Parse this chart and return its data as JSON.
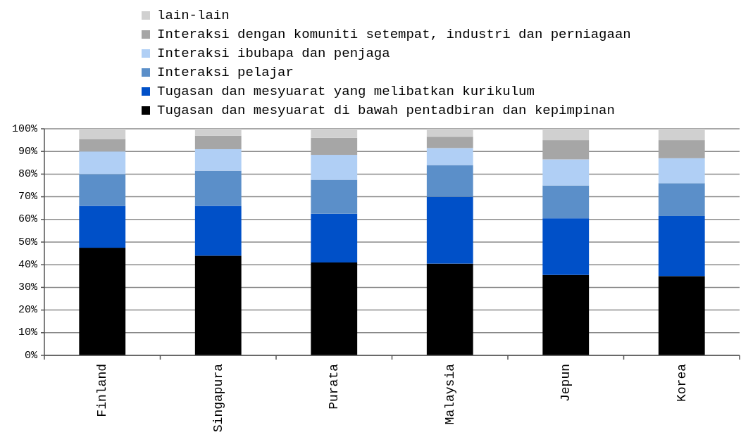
{
  "chart_data": {
    "type": "bar",
    "stacked": true,
    "legend": "top",
    "grid": "y",
    "categories": [
      "Finland",
      "Singapura",
      "Purata",
      "Malaysia",
      "Jepun",
      "Korea"
    ],
    "ylim": [
      0,
      100
    ],
    "yticks": [
      {
        "value": 0,
        "label": "0%"
      },
      {
        "value": 10,
        "label": "10%"
      },
      {
        "value": 20,
        "label": "20%"
      },
      {
        "value": 30,
        "label": "30%"
      },
      {
        "value": 40,
        "label": "40%"
      },
      {
        "value": 50,
        "label": "50%"
      },
      {
        "value": 60,
        "label": "60%"
      },
      {
        "value": 70,
        "label": "70%"
      },
      {
        "value": 80,
        "label": "80%"
      },
      {
        "value": 90,
        "label": "90%"
      },
      {
        "value": 100,
        "label": "100%"
      }
    ],
    "series": [
      {
        "name": "Tugasan dan mesyuarat di bawah pentadbiran dan kepimpinan",
        "color": "#000000",
        "values": [
          47.5,
          44,
          41,
          40.5,
          35.5,
          35
        ]
      },
      {
        "name": "Tugasan dan mesyuarat yang melibatkan kurikulum",
        "color": "#0050c8",
        "values": [
          18.5,
          22,
          21.5,
          29.5,
          25,
          26.5
        ]
      },
      {
        "name": "Interaksi pelajar",
        "color": "#5b8fc9",
        "values": [
          14,
          15.5,
          15,
          14,
          14.5,
          14.5
        ]
      },
      {
        "name": "Interaksi ibubapa dan penjaga",
        "color": "#b0cff5",
        "values": [
          10,
          9.5,
          11,
          7.5,
          11.5,
          11
        ]
      },
      {
        "name": "Interaksi dengan komuniti setempat, industri dan perniagaan",
        "color": "#a6a6a6",
        "values": [
          5.5,
          6,
          7.5,
          5,
          8.5,
          8
        ]
      },
      {
        "name": "lain-lain",
        "color": "#d0d0d0",
        "values": [
          4.5,
          3,
          4,
          3.5,
          5,
          5
        ]
      }
    ]
  }
}
